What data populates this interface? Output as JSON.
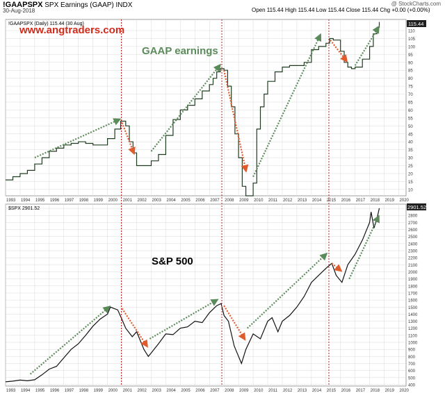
{
  "header": {
    "ticker": "!GAAPSPX",
    "description": "SPX Earnings (GAAP) INDX",
    "date": "30-Aug-2018",
    "credit": "@ StockCharts.com",
    "ohlc": "Open 115.44  High 115.44  Low 115.44  Close 115.44  Chg +0.00 (+0.00%)"
  },
  "colors": {
    "gaap_line": "#1f3b1f",
    "spx_line": "#111111",
    "up_arrow": "#5b8a5b",
    "down_arrow": "#e05a2a",
    "divider": "#b22222",
    "grid": "#d9d9d9",
    "watermark": "#d22c1c",
    "panel_label": "#5b8a5b"
  },
  "chart_data": [
    {
      "type": "line",
      "legend": "!GAAPSPX (Daily) 115.44 (30 Aug)",
      "watermark": "www.angtraders.com",
      "title": "GAAP earnings",
      "last_value_tag": "115.44",
      "x_ticks": [
        "1993",
        "1994",
        "1995",
        "1996",
        "1997",
        "1998",
        "1999",
        "2000",
        "2001",
        "2002",
        "2003",
        "2004",
        "2005",
        "2006",
        "2007",
        "2008",
        "2009",
        "2010",
        "2011",
        "2012",
        "2013",
        "2014",
        "2015",
        "2016",
        "2017",
        "2018",
        "2019",
        "2020"
      ],
      "y_ticks": [
        10,
        15,
        20,
        25,
        30,
        35,
        40,
        45,
        50,
        55,
        60,
        65,
        70,
        75,
        80,
        85,
        90,
        95,
        100,
        105,
        110
      ],
      "ylim": [
        6,
        117
      ],
      "x": [
        1993.0,
        1993.5,
        1994.0,
        1994.5,
        1995.0,
        1995.5,
        1996.0,
        1996.5,
        1997.0,
        1997.5,
        1998.0,
        1998.5,
        1999.0,
        1999.5,
        2000.0,
        2000.5,
        2000.9,
        2001.25,
        2001.5,
        2001.75,
        2002.0,
        2002.5,
        2003.0,
        2003.5,
        2004.0,
        2004.5,
        2005.0,
        2005.5,
        2006.0,
        2006.5,
        2007.0,
        2007.25,
        2007.5,
        2007.75,
        2008.0,
        2008.25,
        2008.5,
        2008.75,
        2009.0,
        2009.25,
        2009.5,
        2009.75,
        2010.0,
        2010.25,
        2010.5,
        2010.75,
        2011.0,
        2011.5,
        2012.0,
        2012.5,
        2013.0,
        2013.5,
        2014.0,
        2014.5,
        2015.0,
        2015.25,
        2015.5,
        2016.0,
        2016.25,
        2016.5,
        2016.75,
        2017.0,
        2017.5,
        2018.0,
        2018.25,
        2018.5,
        2018.66
      ],
      "y": [
        16,
        18,
        20,
        22,
        26,
        30,
        34,
        36,
        38,
        39,
        40,
        39,
        38,
        38,
        42,
        48,
        53,
        50,
        40,
        33,
        25,
        25,
        28,
        32,
        44,
        54,
        60,
        63,
        67,
        72,
        76,
        80,
        84,
        86,
        85,
        75,
        62,
        45,
        30,
        12,
        6,
        6,
        14,
        48,
        62,
        70,
        78,
        84,
        87,
        88,
        88,
        90,
        98,
        100,
        102,
        105,
        104,
        97,
        90,
        87,
        86,
        87,
        92,
        100,
        108,
        112,
        115.44
      ]
    },
    {
      "type": "line",
      "legend": "$SPX 2901.52",
      "title": "S&P 500",
      "last_value_tag": "2901.52",
      "x_ticks": [
        "1993",
        "1994",
        "1995",
        "1996",
        "1997",
        "1998",
        "1999",
        "2000",
        "2001",
        "2002",
        "2003",
        "2004",
        "2005",
        "2006",
        "2007",
        "2008",
        "2009",
        "2010",
        "2011",
        "2012",
        "2013",
        "2014",
        "2015",
        "2016",
        "2017",
        "2018",
        "2019",
        "2020"
      ],
      "y_ticks": [
        400,
        500,
        600,
        700,
        800,
        900,
        1000,
        1100,
        1200,
        1300,
        1400,
        1500,
        1600,
        1700,
        1800,
        1900,
        2000,
        2100,
        2200,
        2300,
        2400,
        2500,
        2600,
        2700,
        2800,
        2900
      ],
      "ylim": [
        380,
        2960
      ],
      "x": [
        1993.0,
        1993.5,
        1994.0,
        1994.5,
        1995.0,
        1995.5,
        1996.0,
        1996.5,
        1997.0,
        1997.5,
        1998.0,
        1998.5,
        1999.0,
        1999.5,
        2000.0,
        2000.2,
        2000.7,
        2001.0,
        2001.25,
        2001.7,
        2002.0,
        2002.5,
        2002.8,
        2003.0,
        2003.5,
        2004.0,
        2004.5,
        2005.0,
        2005.5,
        2006.0,
        2006.5,
        2007.0,
        2007.5,
        2007.8,
        2008.0,
        2008.3,
        2008.7,
        2008.9,
        2009.2,
        2009.5,
        2010.0,
        2010.5,
        2011.0,
        2011.3,
        2011.7,
        2012.0,
        2012.5,
        2013.0,
        2013.5,
        2014.0,
        2014.5,
        2015.0,
        2015.4,
        2015.7,
        2016.1,
        2016.5,
        2017.0,
        2017.5,
        2018.0,
        2018.1,
        2018.3,
        2018.5,
        2018.66
      ],
      "y": [
        440,
        450,
        465,
        455,
        470,
        540,
        620,
        660,
        780,
        900,
        980,
        1100,
        1230,
        1330,
        1400,
        1500,
        1460,
        1320,
        1200,
        1080,
        1150,
        900,
        800,
        850,
        980,
        1120,
        1110,
        1200,
        1220,
        1300,
        1280,
        1420,
        1520,
        1550,
        1380,
        1300,
        950,
        850,
        700,
        900,
        1120,
        1050,
        1300,
        1350,
        1150,
        1300,
        1380,
        1500,
        1650,
        1850,
        1950,
        2050,
        2120,
        1950,
        1850,
        2100,
        2250,
        2450,
        2700,
        2850,
        2620,
        2750,
        2901.52
      ]
    }
  ]
}
